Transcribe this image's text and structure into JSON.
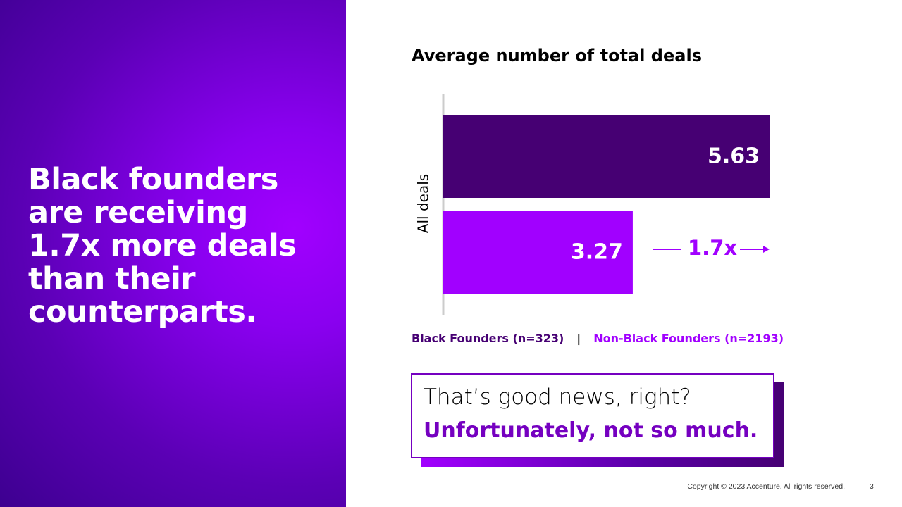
{
  "headline": [
    "Black founders",
    "are receiving",
    "1.7x more deals",
    "than their",
    "counterparts."
  ],
  "chart_data": {
    "type": "bar",
    "orientation": "horizontal",
    "title": "Average number of total deals",
    "categories": [
      "All deals"
    ],
    "series": [
      {
        "name": "Black Founders (n=323)",
        "color": "#460073",
        "values": [
          5.63
        ]
      },
      {
        "name": "Non-Black Founders (n=2193)",
        "color": "#a100ff",
        "values": [
          3.27
        ]
      }
    ],
    "legend_separator": "|",
    "annotation": "1.7x"
  },
  "callout": {
    "line1": "That’s good news, right?",
    "line2": "Unfortunately, not so much."
  },
  "footer": {
    "copyright": "Copyright © 2023 Accenture. All rights reserved.",
    "page_number": 3
  }
}
